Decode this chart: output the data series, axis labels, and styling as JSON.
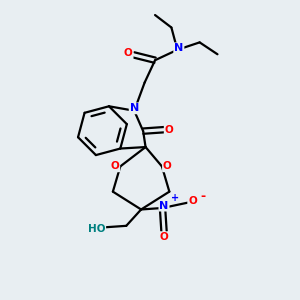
{
  "bg_color": "#e8eef2",
  "atom_colors": {
    "N": "#0000ff",
    "O": "#ff0000",
    "H": "#008080",
    "C": "#000000"
  },
  "bond_color": "#000000",
  "bond_width": 1.6
}
